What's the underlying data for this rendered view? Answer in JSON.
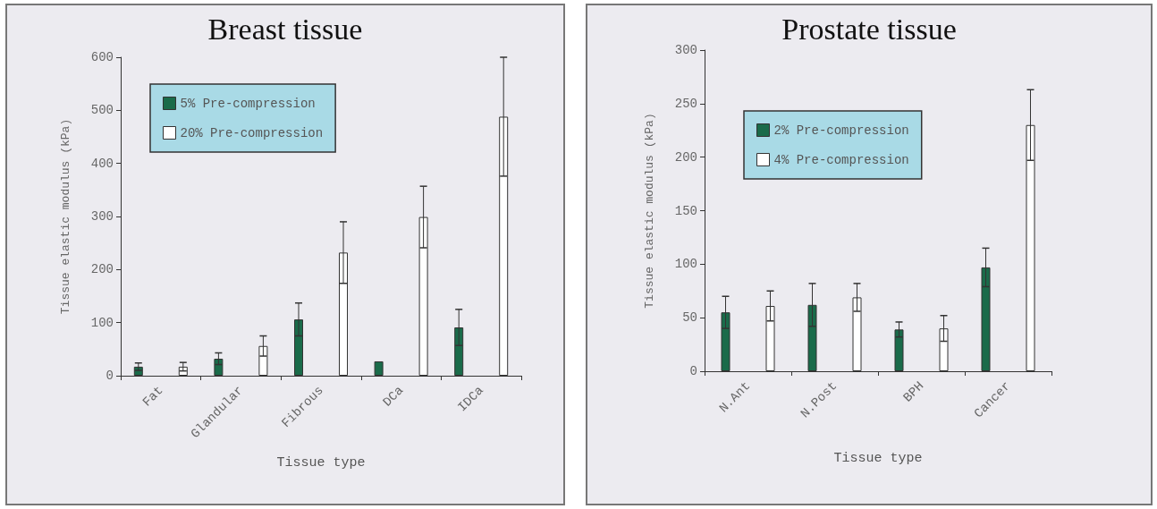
{
  "chart_data": [
    {
      "type": "bar",
      "title": "Breast tissue",
      "xlabel": "Tissue type",
      "ylabel": "Tissue elastic modulus (kPa)",
      "categories": [
        "Fat",
        "Glandular",
        "Fibrous",
        "DCa",
        "IDCa"
      ],
      "series": [
        {
          "name": "5% Pre-compression",
          "color": "#1a6b4a",
          "values": [
            17,
            32,
            106,
            27,
            91
          ],
          "errors": [
            7,
            11,
            31,
            null,
            34
          ]
        },
        {
          "name": "20% Pre-compression",
          "color": "#ffffff",
          "values": [
            17,
            56,
            232,
            299,
            488
          ],
          "errors": [
            8,
            19,
            58,
            58,
            112
          ]
        }
      ],
      "ylim": [
        0,
        600
      ],
      "yticks": [
        0,
        100,
        200,
        300,
        400,
        500,
        600
      ],
      "grid": false,
      "legend": "top"
    },
    {
      "type": "bar",
      "title": "Prostate tissue",
      "xlabel": "Tissue type",
      "ylabel": "Tissue elastic modulus (kPa)",
      "categories": [
        "N.Ant",
        "N.Post",
        "BPH",
        "Cancer"
      ],
      "series": [
        {
          "name": "2% Pre-compression",
          "color": "#1a6b4a",
          "values": [
            55,
            62,
            39,
            97
          ],
          "errors": [
            15,
            20,
            7,
            18
          ]
        },
        {
          "name": "4% Pre-compression",
          "color": "#ffffff",
          "values": [
            61,
            69,
            40,
            230
          ],
          "errors": [
            14,
            13,
            12,
            33
          ]
        }
      ],
      "ylim": [
        0,
        300
      ],
      "yticks": [
        0,
        50,
        100,
        150,
        200,
        250,
        300
      ],
      "grid": false,
      "legend": "top"
    }
  ]
}
